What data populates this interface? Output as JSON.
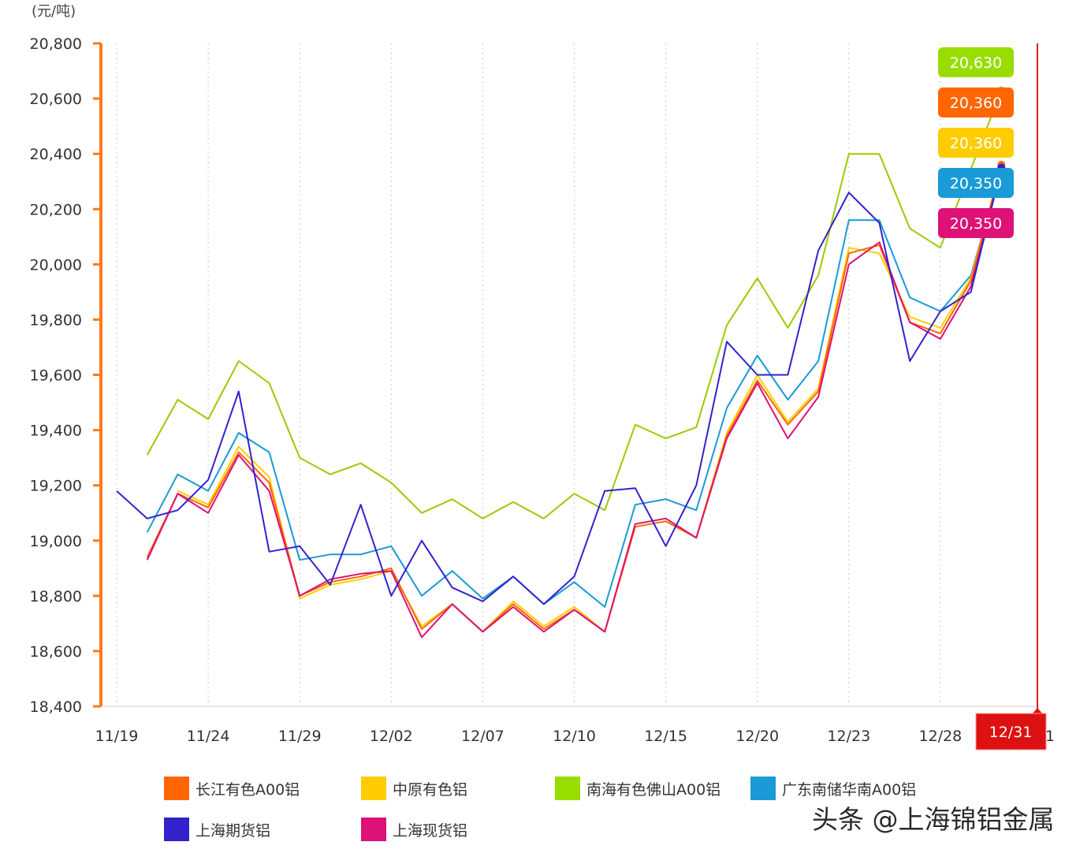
{
  "chart_data": {
    "type": "line",
    "unit_label": "(元/吨)",
    "ylim": [
      18400,
      20800
    ],
    "y_ticks": [
      "18,400",
      "18,600",
      "18,800",
      "19,000",
      "19,200",
      "19,400",
      "19,600",
      "19,800",
      "20,000",
      "20,200",
      "20,400",
      "20,600",
      "20,800"
    ],
    "x_tick_labels": [
      "11/19",
      "11/24",
      "11/29",
      "12/02",
      "12/07",
      "12/10",
      "12/15",
      "12/20",
      "12/23",
      "12/28"
    ],
    "x_tick_last_partial": "1",
    "current_date_label": "12/31",
    "series": [
      {
        "name": "长江有色A00铝",
        "color": "#ff6600",
        "values": [
          null,
          18940,
          19170,
          19120,
          19320,
          19210,
          18800,
          18850,
          18870,
          18900,
          18680,
          18770,
          18670,
          18770,
          18680,
          18750,
          18670,
          19050,
          19070,
          19010,
          19380,
          19580,
          19420,
          19540,
          20040,
          20070,
          19790,
          19750,
          19940,
          20360
        ]
      },
      {
        "name": "中原有色铝",
        "color": "#ffcc00",
        "values": [
          null,
          null,
          19180,
          19130,
          19340,
          19230,
          18790,
          18840,
          18860,
          18890,
          18690,
          18770,
          18670,
          18780,
          18690,
          18760,
          18670,
          19060,
          19080,
          19010,
          19390,
          19600,
          19430,
          19550,
          20060,
          20040,
          19810,
          19770,
          19950,
          20360
        ]
      },
      {
        "name": "南海有色佛山A00铝",
        "color": "#99cc00",
        "values": [
          null,
          19310,
          19510,
          19440,
          19650,
          19570,
          19300,
          19240,
          19280,
          19210,
          19100,
          19150,
          19080,
          19140,
          19080,
          19170,
          19110,
          19420,
          19370,
          19410,
          19780,
          19950,
          19770,
          19960,
          20400,
          20400,
          20130,
          20060,
          null,
          20630
        ]
      },
      {
        "name": "广东南储华南A00铝",
        "color": "#1a9ad6",
        "values": [
          null,
          19030,
          19240,
          19180,
          19390,
          19320,
          18930,
          18950,
          18950,
          18980,
          18800,
          18890,
          18790,
          18870,
          18770,
          18850,
          18760,
          19130,
          19150,
          19110,
          19480,
          19670,
          19510,
          19650,
          20160,
          20160,
          19880,
          19830,
          19960,
          20350
        ]
      },
      {
        "name": "上海期货铝",
        "color": "#3322cc",
        "values": [
          19180,
          19080,
          19110,
          19220,
          19540,
          18960,
          18980,
          18840,
          19130,
          18800,
          19000,
          18830,
          18780,
          18870,
          18770,
          18870,
          19180,
          19190,
          18980,
          19200,
          19720,
          19600,
          19600,
          20050,
          20260,
          20150,
          19650,
          19830,
          19900,
          20350
        ]
      },
      {
        "name": "上海现货铝",
        "color": "#dd1177",
        "values": [
          null,
          18930,
          19170,
          19100,
          19310,
          19180,
          18800,
          18860,
          18880,
          18890,
          18650,
          18770,
          18670,
          18760,
          18670,
          18750,
          18670,
          19060,
          19080,
          19010,
          19370,
          19570,
          19370,
          19520,
          20000,
          20080,
          19790,
          19730,
          19920,
          20350
        ]
      }
    ],
    "value_labels": [
      {
        "text": "20,630",
        "color": "#99dd00"
      },
      {
        "text": "20,360",
        "color": "#ff6600"
      },
      {
        "text": "20,360",
        "color": "#ffcc00"
      },
      {
        "text": "20,350",
        "color": "#1a9ad6"
      },
      {
        "text": "20,350",
        "color": "#dd1177"
      }
    ]
  },
  "legend": [
    {
      "label": "长江有色A00铝",
      "color": "#ff6600"
    },
    {
      "label": "中原有色铝",
      "color": "#ffcc00"
    },
    {
      "label": "南海有色佛山A00铝",
      "color": "#99dd00"
    },
    {
      "label": "广东南储华南A00铝",
      "color": "#1a9ad6"
    },
    {
      "label": "上海期货铝",
      "color": "#3322cc"
    },
    {
      "label": "上海现货铝",
      "color": "#dd1177"
    }
  ],
  "watermark": "头条 @上海锦铝金属"
}
